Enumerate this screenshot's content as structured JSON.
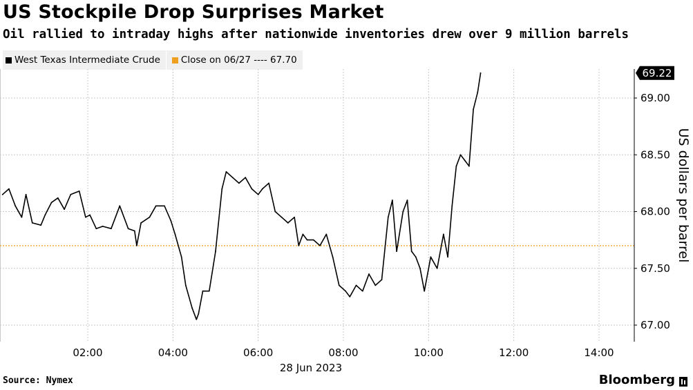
{
  "header": {
    "title": "US Stockpile Drop Surprises Market",
    "subtitle": "Oil rallied to intraday highs after nationwide inventories drew over 9 million barrels"
  },
  "legend": {
    "items": [
      {
        "label": "West Texas Intermediate Crude",
        "color": "#000000"
      },
      {
        "label": "Close on 06/27 ---- 67.70",
        "color": "#f0a020"
      }
    ]
  },
  "footer": {
    "source": "Source: Nymex",
    "brand": "Bloomberg"
  },
  "chart_data": {
    "type": "line",
    "title": "US Stockpile Drop Surprises Market",
    "xlabel": "28 Jun 2023",
    "ylabel": "US dollars per barrel",
    "x_ticks": [
      "02:00",
      "04:00",
      "06:00",
      "08:00",
      "10:00",
      "12:00",
      "14:00"
    ],
    "x_tick_hours": [
      2,
      4,
      6,
      8,
      10,
      12,
      14
    ],
    "xlim_hours": [
      0,
      15
    ],
    "y_ticks": [
      67.0,
      67.5,
      68.0,
      68.5,
      69.0
    ],
    "y_tick_labels": [
      "67.00",
      "67.50",
      "68.00",
      "68.50",
      "69.00"
    ],
    "ylim": [
      66.95,
      69.35
    ],
    "last_value": 69.22,
    "last_value_label": "69.22",
    "reference_line": {
      "label": "Close on 06/27",
      "value": 67.7,
      "color": "#f0a020"
    },
    "grid": true,
    "legend_position": "top-left",
    "series": [
      {
        "name": "West Texas Intermediate Crude",
        "color": "#000000",
        "x_hours": [
          0.0,
          0.15,
          0.3,
          0.45,
          0.55,
          0.7,
          0.9,
          1.0,
          1.15,
          1.3,
          1.45,
          1.6,
          1.8,
          1.95,
          2.05,
          2.2,
          2.35,
          2.55,
          2.75,
          2.95,
          3.1,
          3.15,
          3.25,
          3.45,
          3.6,
          3.8,
          3.95,
          4.05,
          4.2,
          4.3,
          4.45,
          4.55,
          4.6,
          4.7,
          4.85,
          5.0,
          5.15,
          5.25,
          5.4,
          5.55,
          5.7,
          5.85,
          6.0,
          6.1,
          6.25,
          6.4,
          6.55,
          6.7,
          6.85,
          6.95,
          7.05,
          7.15,
          7.3,
          7.45,
          7.6,
          7.75,
          7.9,
          8.05,
          8.15,
          8.3,
          8.45,
          8.6,
          8.75,
          8.9,
          9.05,
          9.15,
          9.25,
          9.4,
          9.5,
          9.6,
          9.7,
          9.8,
          9.9,
          10.05,
          10.2,
          10.35,
          10.45,
          10.55,
          10.65,
          10.75,
          10.85,
          10.95,
          11.05,
          11.15,
          11.22
        ],
        "values": [
          68.15,
          68.2,
          68.05,
          67.95,
          68.15,
          67.9,
          67.88,
          67.97,
          68.08,
          68.12,
          68.02,
          68.15,
          68.18,
          67.95,
          67.97,
          67.85,
          67.87,
          67.85,
          68.05,
          67.85,
          67.83,
          67.7,
          67.9,
          67.95,
          68.05,
          68.05,
          67.92,
          67.8,
          67.6,
          67.35,
          67.15,
          67.05,
          67.1,
          67.3,
          67.3,
          67.65,
          68.2,
          68.35,
          68.3,
          68.25,
          68.3,
          68.2,
          68.15,
          68.2,
          68.25,
          68.0,
          67.95,
          67.9,
          67.95,
          67.7,
          67.8,
          67.75,
          67.75,
          67.7,
          67.8,
          67.6,
          67.35,
          67.3,
          67.25,
          67.35,
          67.3,
          67.45,
          67.35,
          67.4,
          67.95,
          68.1,
          67.65,
          68.0,
          68.1,
          67.65,
          67.6,
          67.5,
          67.3,
          67.6,
          67.5,
          67.8,
          67.6,
          68.05,
          68.4,
          68.5,
          68.45,
          68.4,
          68.9,
          69.05,
          69.22
        ]
      }
    ]
  }
}
